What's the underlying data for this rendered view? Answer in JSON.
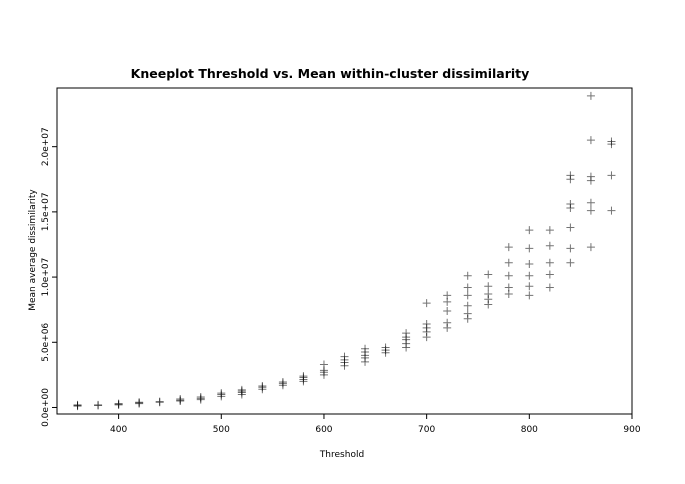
{
  "chart_data": {
    "type": "scatter",
    "title": "Kneeplot Threshold vs. Mean within-cluster dissimilarity",
    "xlabel": "Threshold",
    "ylabel": "Mean average dissimilarity",
    "xlim": [
      340,
      900
    ],
    "ylim": [
      -500000,
      24500000
    ],
    "xticks": [
      {
        "value": 400,
        "label": "400"
      },
      {
        "value": 500,
        "label": "500"
      },
      {
        "value": 600,
        "label": "600"
      },
      {
        "value": 700,
        "label": "700"
      },
      {
        "value": 800,
        "label": "800"
      },
      {
        "value": 900,
        "label": "900"
      }
    ],
    "yticks": [
      {
        "value": 0,
        "label": "0.0e+00"
      },
      {
        "value": 5000000,
        "label": "5.0e+06"
      },
      {
        "value": 10000000,
        "label": "1.0e+07"
      },
      {
        "value": 15000000,
        "label": "1.5e+07"
      },
      {
        "value": 20000000,
        "label": "2.0e+07"
      }
    ],
    "marker": "+",
    "grid": false,
    "series": [
      {
        "points": [
          {
            "x": 360,
            "y": 100000
          },
          {
            "x": 360,
            "y": 150000
          },
          {
            "x": 360,
            "y": 200000
          },
          {
            "x": 380,
            "y": 150000
          },
          {
            "x": 380,
            "y": 200000
          },
          {
            "x": 400,
            "y": 200000
          },
          {
            "x": 400,
            "y": 250000
          },
          {
            "x": 400,
            "y": 300000
          },
          {
            "x": 420,
            "y": 300000
          },
          {
            "x": 420,
            "y": 350000
          },
          {
            "x": 420,
            "y": 400000
          },
          {
            "x": 440,
            "y": 400000
          },
          {
            "x": 440,
            "y": 450000
          },
          {
            "x": 460,
            "y": 500000
          },
          {
            "x": 460,
            "y": 550000
          },
          {
            "x": 460,
            "y": 650000
          },
          {
            "x": 480,
            "y": 600000
          },
          {
            "x": 480,
            "y": 700000
          },
          {
            "x": 480,
            "y": 800000
          },
          {
            "x": 500,
            "y": 850000
          },
          {
            "x": 500,
            "y": 1000000
          },
          {
            "x": 500,
            "y": 1100000
          },
          {
            "x": 520,
            "y": 1000000
          },
          {
            "x": 520,
            "y": 1150000
          },
          {
            "x": 520,
            "y": 1250000
          },
          {
            "x": 520,
            "y": 1350000
          },
          {
            "x": 540,
            "y": 1400000
          },
          {
            "x": 540,
            "y": 1550000
          },
          {
            "x": 540,
            "y": 1650000
          },
          {
            "x": 560,
            "y": 1700000
          },
          {
            "x": 560,
            "y": 1850000
          },
          {
            "x": 560,
            "y": 1950000
          },
          {
            "x": 580,
            "y": 2000000
          },
          {
            "x": 580,
            "y": 2150000
          },
          {
            "x": 580,
            "y": 2300000
          },
          {
            "x": 580,
            "y": 2400000
          },
          {
            "x": 600,
            "y": 2500000
          },
          {
            "x": 600,
            "y": 2700000
          },
          {
            "x": 600,
            "y": 2850000
          },
          {
            "x": 600,
            "y": 3300000
          },
          {
            "x": 620,
            "y": 3200000
          },
          {
            "x": 620,
            "y": 3450000
          },
          {
            "x": 620,
            "y": 3650000
          },
          {
            "x": 620,
            "y": 3900000
          },
          {
            "x": 640,
            "y": 3500000
          },
          {
            "x": 640,
            "y": 3800000
          },
          {
            "x": 640,
            "y": 4000000
          },
          {
            "x": 640,
            "y": 4250000
          },
          {
            "x": 640,
            "y": 4500000
          },
          {
            "x": 660,
            "y": 4200000
          },
          {
            "x": 660,
            "y": 4400000
          },
          {
            "x": 660,
            "y": 4600000
          },
          {
            "x": 680,
            "y": 4600000
          },
          {
            "x": 680,
            "y": 4900000
          },
          {
            "x": 680,
            "y": 5200000
          },
          {
            "x": 680,
            "y": 5400000
          },
          {
            "x": 680,
            "y": 5700000
          },
          {
            "x": 700,
            "y": 5400000
          },
          {
            "x": 700,
            "y": 5800000
          },
          {
            "x": 700,
            "y": 6100000
          },
          {
            "x": 700,
            "y": 6400000
          },
          {
            "x": 700,
            "y": 8000000
          },
          {
            "x": 720,
            "y": 6100000
          },
          {
            "x": 720,
            "y": 6500000
          },
          {
            "x": 720,
            "y": 7400000
          },
          {
            "x": 720,
            "y": 8100000
          },
          {
            "x": 720,
            "y": 8600000
          },
          {
            "x": 740,
            "y": 6800000
          },
          {
            "x": 740,
            "y": 7200000
          },
          {
            "x": 740,
            "y": 7800000
          },
          {
            "x": 740,
            "y": 8600000
          },
          {
            "x": 740,
            "y": 9200000
          },
          {
            "x": 740,
            "y": 10100000
          },
          {
            "x": 760,
            "y": 7900000
          },
          {
            "x": 760,
            "y": 8300000
          },
          {
            "x": 760,
            "y": 8700000
          },
          {
            "x": 760,
            "y": 9300000
          },
          {
            "x": 760,
            "y": 10200000
          },
          {
            "x": 780,
            "y": 8700000
          },
          {
            "x": 780,
            "y": 9200000
          },
          {
            "x": 780,
            "y": 10100000
          },
          {
            "x": 780,
            "y": 11100000
          },
          {
            "x": 780,
            "y": 12300000
          },
          {
            "x": 800,
            "y": 8600000
          },
          {
            "x": 800,
            "y": 9300000
          },
          {
            "x": 800,
            "y": 10100000
          },
          {
            "x": 800,
            "y": 11000000
          },
          {
            "x": 800,
            "y": 12200000
          },
          {
            "x": 800,
            "y": 13600000
          },
          {
            "x": 820,
            "y": 9200000
          },
          {
            "x": 820,
            "y": 10200000
          },
          {
            "x": 820,
            "y": 11100000
          },
          {
            "x": 820,
            "y": 12400000
          },
          {
            "x": 820,
            "y": 13600000
          },
          {
            "x": 840,
            "y": 11100000
          },
          {
            "x": 840,
            "y": 12200000
          },
          {
            "x": 840,
            "y": 13800000
          },
          {
            "x": 840,
            "y": 15300000
          },
          {
            "x": 840,
            "y": 15600000
          },
          {
            "x": 840,
            "y": 17500000
          },
          {
            "x": 840,
            "y": 17800000
          },
          {
            "x": 860,
            "y": 12300000
          },
          {
            "x": 860,
            "y": 15100000
          },
          {
            "x": 860,
            "y": 15700000
          },
          {
            "x": 860,
            "y": 17400000
          },
          {
            "x": 860,
            "y": 17700000
          },
          {
            "x": 860,
            "y": 20500000
          },
          {
            "x": 860,
            "y": 23900000
          },
          {
            "x": 880,
            "y": 15100000
          },
          {
            "x": 880,
            "y": 17800000
          },
          {
            "x": 880,
            "y": 20200000
          },
          {
            "x": 880,
            "y": 20400000
          }
        ]
      }
    ]
  }
}
